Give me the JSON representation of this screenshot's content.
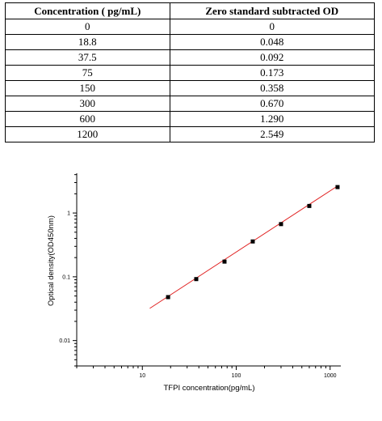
{
  "table": {
    "headers": [
      "Concentration ( pg/mL)",
      "Zero standard subtracted OD"
    ],
    "rows": [
      [
        "0",
        "0"
      ],
      [
        "18.8",
        "0.048"
      ],
      [
        "37.5",
        "0.092"
      ],
      [
        "75",
        "0.173"
      ],
      [
        "150",
        "0.358"
      ],
      [
        "300",
        "0.670"
      ],
      [
        "600",
        "1.290"
      ],
      [
        "1200",
        "2.549"
      ]
    ]
  },
  "chart_data": {
    "type": "scatter",
    "title": "",
    "xlabel": "TFPI concentration(pg/mL)",
    "ylabel": "Optical density(OD450nm)",
    "x_scale": "log",
    "y_scale": "log",
    "xlim": [
      2,
      1300
    ],
    "ylim": [
      0.004,
      4.2
    ],
    "x_tick_values": [
      10,
      100,
      1000
    ],
    "x_tick_labels": [
      "10",
      "100",
      "1000"
    ],
    "y_tick_values": [
      0.01,
      0.1,
      1
    ],
    "y_tick_labels": [
      "0.01",
      "0.1",
      "1"
    ],
    "grid": false,
    "points": {
      "x": [
        18.8,
        37.5,
        75,
        150,
        300,
        600,
        1200
      ],
      "y": [
        0.048,
        0.092,
        0.173,
        0.358,
        0.67,
        1.29,
        2.549
      ]
    },
    "fit_line": {
      "x": [
        12,
        1200
      ],
      "y": [
        0.032,
        2.65
      ]
    },
    "colors": {
      "points": "#000000",
      "fit_line": "#e02020",
      "axes": "#000000"
    }
  }
}
